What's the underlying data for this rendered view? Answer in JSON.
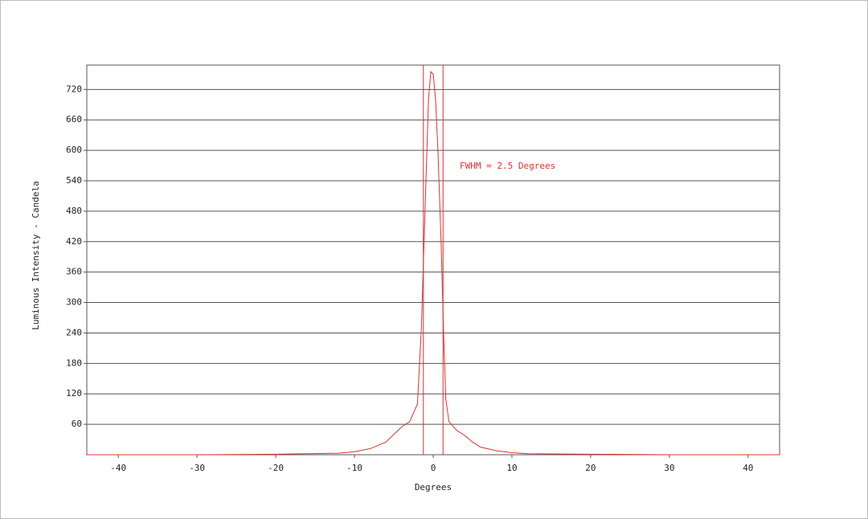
{
  "chart_data": {
    "type": "line",
    "x_label": "Degrees",
    "y_label": "Luminous Intensity - Candela",
    "annotation": "FWHM =  2.5 Degrees",
    "x": [
      -44,
      -30,
      -20,
      -12,
      -10,
      -8,
      -6,
      -5,
      -4,
      -3,
      -2,
      -1.5,
      -1,
      -0.6,
      -0.3,
      0,
      0.3,
      0.6,
      1,
      1.3,
      1.6,
      2,
      3,
      4,
      5,
      6,
      8,
      10,
      12,
      20,
      30,
      44
    ],
    "series": [
      {
        "color": "#e03030",
        "values": [
          0,
          0,
          1,
          3,
          6,
          12,
          25,
          40,
          55,
          65,
          100,
          250,
          500,
          700,
          755,
          750,
          700,
          600,
          420,
          250,
          110,
          65,
          48,
          38,
          25,
          15,
          8,
          4,
          2,
          1,
          0,
          0
        ]
      }
    ],
    "markers": [
      -1.25,
      1.25
    ],
    "xlim": [
      -44,
      44
    ],
    "ylim": [
      0,
      768
    ],
    "xticks": [
      -40,
      -30,
      -20,
      -10,
      0,
      10,
      20,
      30,
      40
    ],
    "yticks": [
      60,
      120,
      180,
      240,
      300,
      360,
      420,
      480,
      540,
      600,
      660,
      720
    ],
    "grid": true
  }
}
